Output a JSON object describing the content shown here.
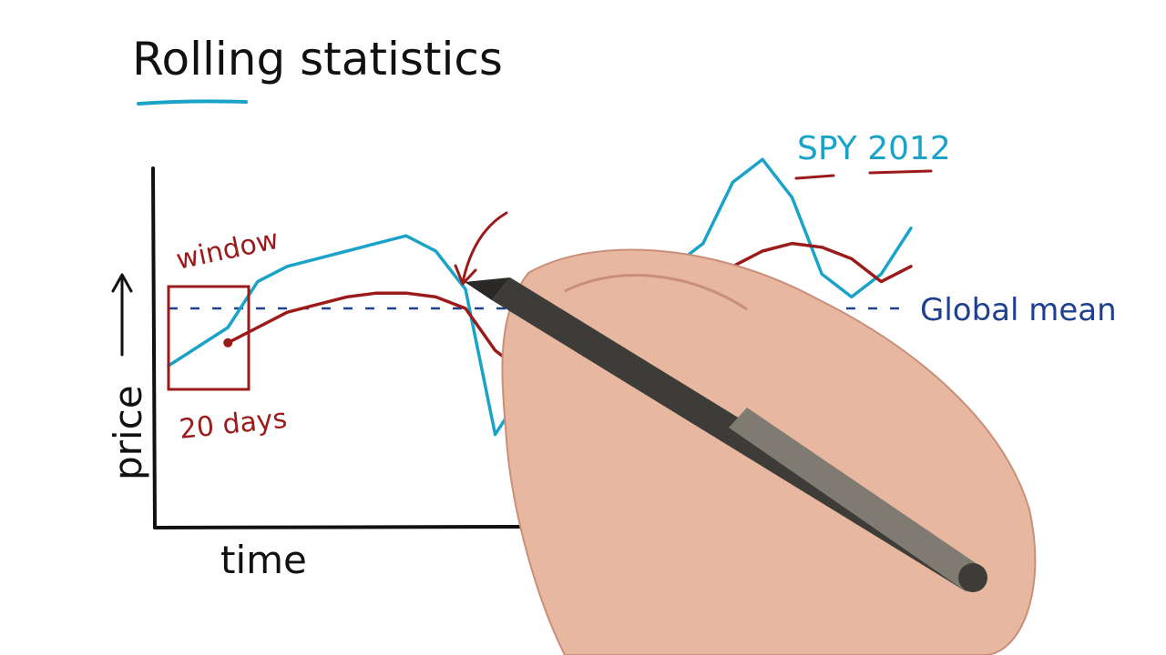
{
  "title": "Rolling statistics",
  "colors": {
    "ink": "#111111",
    "spy": "#1aa3c8",
    "rolling": "#9b1b1b",
    "global_mean": "#1f3f8f"
  },
  "chart_data": {
    "type": "line",
    "xlabel": "time",
    "ylabel": "price",
    "grid": false,
    "annotations": {
      "window": "window",
      "window_size": "20 days",
      "series_label": "SPY 2012",
      "global_mean": "Global mean"
    },
    "series": [
      {
        "name": "SPY 2012",
        "x": [
          0,
          10,
          20,
          30,
          40,
          50,
          60,
          70,
          80,
          90,
          100,
          110,
          120,
          130,
          140,
          150,
          160,
          170,
          180,
          190,
          200,
          210,
          220,
          230,
          240,
          250
        ],
        "values": [
          40,
          45,
          50,
          62,
          66,
          68,
          70,
          72,
          74,
          70,
          60,
          22,
          34,
          40,
          48,
          54,
          60,
          66,
          72,
          88,
          94,
          84,
          64,
          58,
          64,
          76
        ]
      },
      {
        "name": "",
        "x": [
          20,
          30,
          40,
          50,
          60,
          70,
          80,
          90,
          100,
          110,
          120,
          130,
          140,
          150,
          160,
          170,
          180,
          190,
          200,
          210,
          220,
          230,
          240,
          250
        ],
        "values": [
          46,
          50,
          54,
          56,
          58,
          59,
          59,
          58,
          55,
          44,
          38,
          38,
          40,
          44,
          48,
          54,
          60,
          66,
          70,
          72,
          71,
          68,
          62,
          66
        ]
      }
    ],
    "global_mean": 55
  }
}
